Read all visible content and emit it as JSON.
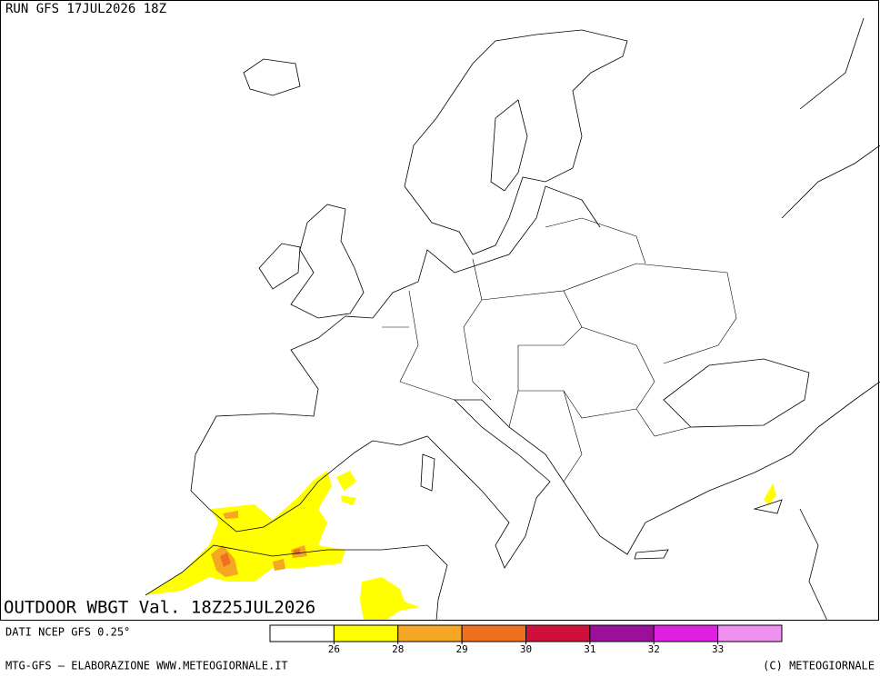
{
  "header": {
    "run": "RUN GFS 17JUL2026 18Z"
  },
  "map": {
    "title": "OUTDOOR WBGT Val. 18Z25JUL2026"
  },
  "colorbar": {
    "colors": [
      "#ffffff",
      "#ffff00",
      "#f5a623",
      "#f07020",
      "#d0103a",
      "#9a109a",
      "#e020e0",
      "#f090f0"
    ],
    "ticks": [
      26,
      28,
      29,
      30,
      31,
      32,
      33
    ]
  },
  "footer": {
    "source": "DATI NCEP GFS 0.25°",
    "credits": "MTG-GFS — ELABORAZIONE WWW.METEOGIORNALE.IT",
    "copyright": "(C) METEOGIORNALE"
  }
}
